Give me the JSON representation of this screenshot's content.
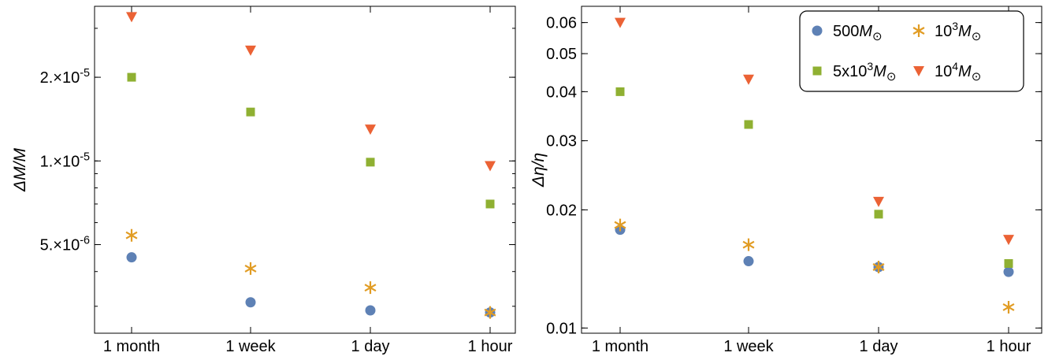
{
  "chart_data": [
    {
      "type": "scatter",
      "categories": [
        "1 month",
        "1 week",
        "1 day",
        "1 hour"
      ],
      "ylabel": "ΔM/M",
      "yscale": "log",
      "ylim": [
        2.4e-06,
        3.6e-05
      ],
      "yticks": [
        {
          "value": 5e-06,
          "label": "5.×10⁻⁶"
        },
        {
          "value": 1e-05,
          "label": "1.×10⁻⁵"
        },
        {
          "value": 2e-05,
          "label": "2.×10⁻⁵"
        }
      ],
      "series": [
        {
          "name": "500M⊙",
          "marker": "circle",
          "color": "#5E81B5",
          "values": [
            4.5e-06,
            3.1e-06,
            2.9e-06,
            2.85e-06
          ]
        },
        {
          "name": "10³M⊙",
          "marker": "star",
          "color": "#E19C24",
          "values": [
            5.4e-06,
            4.1e-06,
            3.5e-06,
            2.85e-06
          ]
        },
        {
          "name": "5x10³M⊙",
          "marker": "square",
          "color": "#8FB032",
          "values": [
            2e-05,
            1.5e-05,
            9.9e-06,
            7e-06
          ]
        },
        {
          "name": "10⁴M⊙",
          "marker": "triangle-down",
          "color": "#EB6235",
          "values": [
            3.3e-05,
            2.5e-05,
            1.3e-05,
            9.6e-06
          ]
        }
      ]
    },
    {
      "type": "scatter",
      "categories": [
        "1 month",
        "1 week",
        "1 day",
        "1 hour"
      ],
      "ylabel": "Δη/η",
      "yscale": "log",
      "ylim": [
        0.0097,
        0.066
      ],
      "yticks": [
        {
          "value": 0.01,
          "label": "0.01"
        },
        {
          "value": 0.02,
          "label": "0.02"
        },
        {
          "value": 0.03,
          "label": "0.03"
        },
        {
          "value": 0.04,
          "label": "0.04"
        },
        {
          "value": 0.05,
          "label": "0.05"
        },
        {
          "value": 0.06,
          "label": "0.06"
        }
      ],
      "legend": "top-right",
      "series": [
        {
          "name": "500M⊙",
          "marker": "circle",
          "color": "#5E81B5",
          "values": [
            0.0178,
            0.0148,
            0.0143,
            0.0139
          ]
        },
        {
          "name": "10³M⊙",
          "marker": "star",
          "color": "#E19C24",
          "values": [
            0.0183,
            0.0163,
            0.0143,
            0.0113
          ]
        },
        {
          "name": "5x10³M⊙",
          "marker": "square",
          "color": "#8FB032",
          "values": [
            0.04,
            0.033,
            0.0195,
            0.0146
          ]
        },
        {
          "name": "10⁴M⊙",
          "marker": "triangle-down",
          "color": "#EB6235",
          "values": [
            0.06,
            0.043,
            0.021,
            0.0168
          ]
        }
      ]
    }
  ]
}
